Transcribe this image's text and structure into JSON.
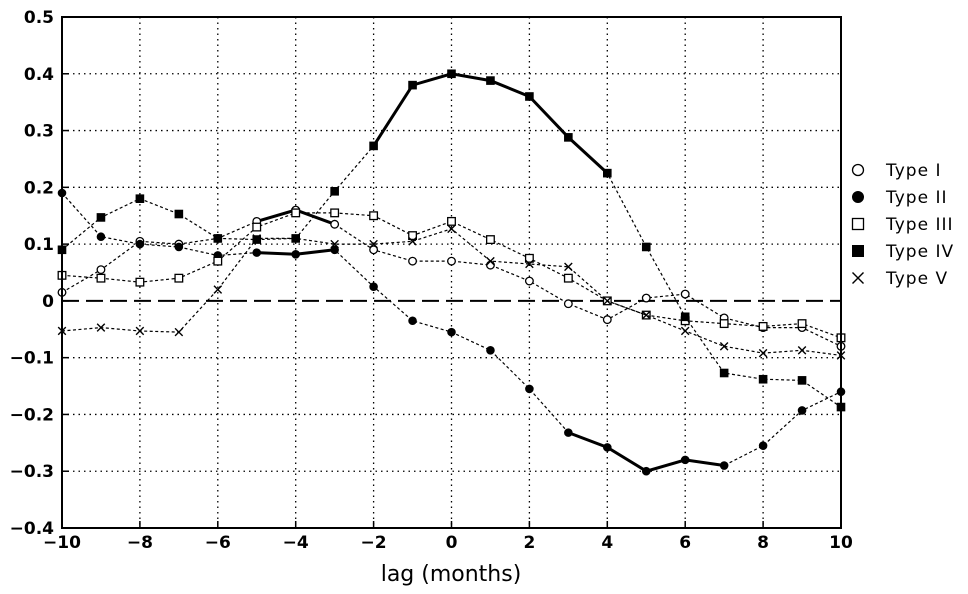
{
  "chart_data": {
    "type": "line",
    "xlabel": "lag (months)",
    "ylabel": "",
    "xlim": [
      -10,
      10
    ],
    "ylim": [
      -0.4,
      0.5
    ],
    "x_ticks": [
      -10,
      -8,
      -6,
      -4,
      -2,
      0,
      2,
      4,
      6,
      8,
      10
    ],
    "y_ticks": [
      -0.4,
      -0.3,
      -0.2,
      -0.1,
      0,
      0.1,
      0.2,
      0.3,
      0.4,
      0.5
    ],
    "grid": true,
    "zero_line": "dashed",
    "legend_position": "right",
    "x": [
      -10,
      -9,
      -8,
      -7,
      -6,
      -5,
      -4,
      -3,
      -2,
      -1,
      0,
      1,
      2,
      3,
      4,
      5,
      6,
      7,
      8,
      9,
      10
    ],
    "series": [
      {
        "name": "Type I",
        "marker": "open-circle",
        "values": [
          0.015,
          0.055,
          0.105,
          0.1,
          0.11,
          0.14,
          0.16,
          0.135,
          0.09,
          0.07,
          0.07,
          0.063,
          0.035,
          -0.005,
          -0.033,
          0.005,
          0.012,
          -0.03,
          -0.047,
          -0.047,
          -0.08
        ],
        "bold_ranges": [
          [
            -5,
            -3
          ]
        ]
      },
      {
        "name": "Type II",
        "marker": "filled-circle",
        "values": [
          0.19,
          0.113,
          0.1,
          0.095,
          0.08,
          0.085,
          0.082,
          0.09,
          0.025,
          -0.035,
          -0.055,
          -0.087,
          -0.155,
          -0.232,
          -0.258,
          -0.3,
          -0.28,
          -0.29,
          -0.255,
          -0.193,
          -0.16
        ],
        "bold_ranges": [
          [
            -5,
            -3
          ],
          [
            3,
            7
          ]
        ]
      },
      {
        "name": "Type III",
        "marker": "open-square",
        "values": [
          0.045,
          0.04,
          0.033,
          0.04,
          0.07,
          0.13,
          0.155,
          0.155,
          0.15,
          0.115,
          0.14,
          0.108,
          0.075,
          0.04,
          0.0,
          -0.025,
          -0.035,
          -0.04,
          -0.045,
          -0.04,
          -0.065
        ],
        "bold_ranges": []
      },
      {
        "name": "Type IV",
        "marker": "filled-square",
        "values": [
          0.09,
          0.147,
          0.18,
          0.153,
          0.11,
          0.108,
          0.11,
          0.193,
          0.273,
          0.38,
          0.4,
          0.388,
          0.36,
          0.288,
          0.225,
          0.095,
          -0.028,
          -0.127,
          -0.138,
          -0.14,
          -0.187
        ],
        "bold_ranges": [
          [
            -2,
            4
          ]
        ]
      },
      {
        "name": "Type V",
        "marker": "cross",
        "values": [
          -0.053,
          -0.047,
          -0.053,
          -0.055,
          0.02,
          0.11,
          0.11,
          0.1,
          0.1,
          0.105,
          0.127,
          0.07,
          0.065,
          0.06,
          0.0,
          -0.025,
          -0.053,
          -0.08,
          -0.092,
          -0.087,
          -0.096
        ],
        "bold_ranges": []
      }
    ]
  }
}
